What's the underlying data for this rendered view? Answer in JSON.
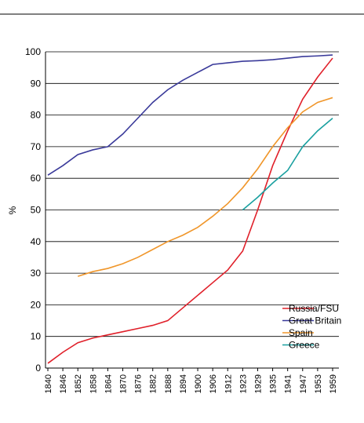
{
  "chart_data": {
    "type": "line",
    "y_label": "%",
    "categories": [
      "1840",
      "1846",
      "1852",
      "1858",
      "1864",
      "1870",
      "1876",
      "1882",
      "1888",
      "1894",
      "1900",
      "1906",
      "1912",
      "1923",
      "1929",
      "1935",
      "1941",
      "1947",
      "1953",
      "1959"
    ],
    "series": [
      {
        "name": "Russia/FSU",
        "color": "#e0202a",
        "values": [
          1.5,
          5,
          8,
          9.5,
          10.5,
          11.5,
          12.5,
          13.5,
          15,
          19,
          23,
          27,
          31,
          37,
          50,
          64,
          75,
          85,
          92,
          98
        ]
      },
      {
        "name": "Great Britain",
        "color": "#3a3a9a",
        "values": [
          61,
          64,
          67.5,
          69,
          70,
          74,
          79,
          84,
          88,
          91,
          93.5,
          96,
          96.5,
          97,
          97.2,
          97.5,
          98,
          98.5,
          98.7,
          99
        ]
      },
      {
        "name": "Spain",
        "color": "#f0962a",
        "values": [
          null,
          null,
          29,
          30.5,
          31.5,
          33,
          35,
          37.5,
          40,
          42,
          44.5,
          48,
          52,
          57,
          63,
          70,
          76,
          81,
          84,
          85.5
        ]
      },
      {
        "name": "Greece",
        "color": "#1aa0a0",
        "values": [
          null,
          null,
          null,
          null,
          null,
          null,
          null,
          null,
          null,
          null,
          null,
          null,
          null,
          50,
          54,
          58.5,
          62.5,
          70,
          75,
          79
        ]
      }
    ],
    "ylim": [
      0,
      100
    ],
    "yticks": [
      0,
      10,
      20,
      30,
      40,
      50,
      60,
      70,
      80,
      90,
      100
    ],
    "grid": true,
    "legend": "lower right"
  }
}
